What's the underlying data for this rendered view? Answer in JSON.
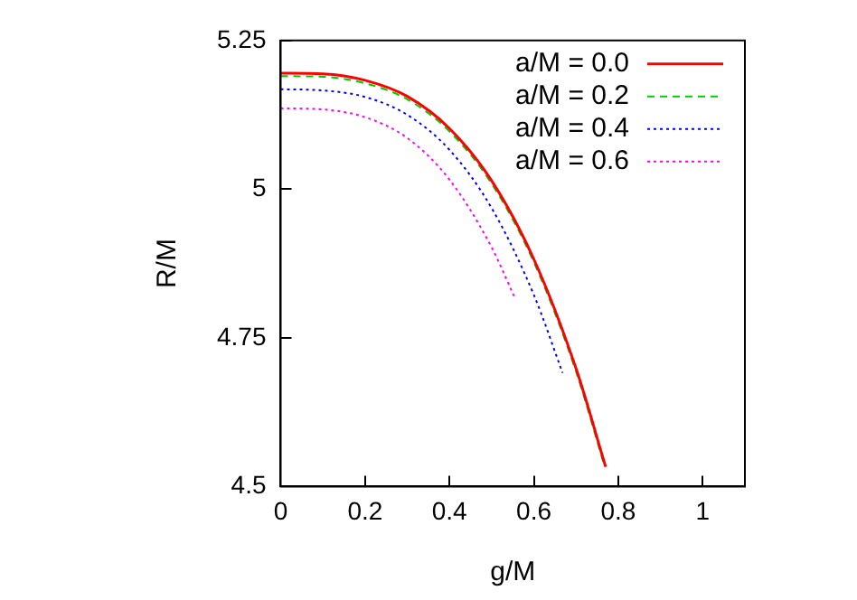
{
  "chart_data": {
    "type": "line",
    "xlabel": "g/M",
    "ylabel": "R/M",
    "xlim": [
      0,
      1.1
    ],
    "xticks": [
      0,
      0.2,
      0.4,
      0.6,
      0.8,
      1
    ],
    "ylim": [
      4.5,
      5.25
    ],
    "yticks": [
      4.5,
      4.75,
      5,
      5.25
    ],
    "grid": false,
    "legend": "top right",
    "marker": "none",
    "series": [
      {
        "name": "a/M = 0.0",
        "color": "#ff0000",
        "line_style": "solid",
        "x": [
          0,
          0.1,
          0.2,
          0.3,
          0.4,
          0.5,
          0.6,
          0.7,
          0.77
        ],
        "values": [
          5.195,
          5.194,
          5.183,
          5.156,
          5.102,
          5.014,
          4.882,
          4.698,
          4.533
        ]
      },
      {
        "name": "a/M = 0.2",
        "color": "#00cc00",
        "line_style": "dashed",
        "x": [
          0,
          0.1,
          0.2,
          0.3,
          0.4,
          0.5,
          0.6,
          0.7,
          0.765
        ],
        "values": [
          5.19,
          5.189,
          5.178,
          5.151,
          5.097,
          5.009,
          4.877,
          4.693,
          4.54
        ]
      },
      {
        "name": "a/M = 0.4",
        "color": "#0000ff",
        "line_style": "dotted",
        "x": [
          0,
          0.1,
          0.2,
          0.3,
          0.4,
          0.5,
          0.6,
          0.668
        ],
        "values": [
          5.168,
          5.166,
          5.155,
          5.125,
          5.066,
          4.968,
          4.822,
          4.691
        ]
      },
      {
        "name": "a/M = 0.6",
        "color": "#ff00ff",
        "line_style": "dotted",
        "x": [
          0,
          0.1,
          0.2,
          0.3,
          0.4,
          0.5,
          0.553
        ],
        "values": [
          5.136,
          5.134,
          5.121,
          5.086,
          5.016,
          4.902,
          4.82
        ]
      }
    ]
  }
}
